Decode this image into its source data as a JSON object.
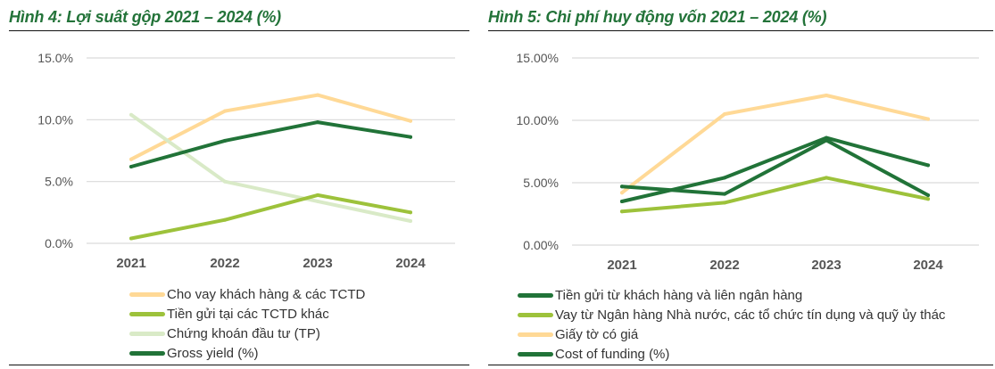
{
  "chart_data": [
    {
      "type": "line",
      "title": "Hình 4: Lợi suất gộp 2021 – 2024 (%)",
      "xlabel": "",
      "ylabel": "",
      "categories": [
        "2021",
        "2022",
        "2023",
        "2024"
      ],
      "ylim": [
        0,
        15
      ],
      "yticks": [
        "0.0%",
        "5.0%",
        "10.0%",
        "15.0%"
      ],
      "ytick_values": [
        0,
        5,
        10,
        15
      ],
      "grid": true,
      "legend_position": "bottom",
      "series": [
        {
          "name": "Cho vay khách hàng & các TCTD",
          "color": "#FFD996",
          "values": [
            6.8,
            10.7,
            12.0,
            9.9
          ]
        },
        {
          "name": "Tiền gửi tại các TCTD khác",
          "color": "#9DC23B",
          "values": [
            0.4,
            1.9,
            3.9,
            2.5
          ]
        },
        {
          "name": "Chứng khoán đầu tư (TP)",
          "color": "#D9EAC7",
          "values": [
            10.4,
            5.0,
            3.4,
            1.8
          ]
        },
        {
          "name": "Gross yield  (%)",
          "color": "#217338",
          "values": [
            6.2,
            8.3,
            9.8,
            8.6
          ]
        }
      ]
    },
    {
      "type": "line",
      "title": "Hình 5: Chi phí huy động vốn 2021 – 2024 (%)",
      "xlabel": "",
      "ylabel": "",
      "categories": [
        "2021",
        "2022",
        "2023",
        "2024"
      ],
      "ylim": [
        0,
        15
      ],
      "yticks": [
        "0.00%",
        "5.00%",
        "10.00%",
        "15.00%"
      ],
      "ytick_values": [
        0,
        5,
        10,
        15
      ],
      "grid": true,
      "legend_position": "bottom",
      "series": [
        {
          "name": "Tiền gửi từ khách hàng và liên ngân hàng",
          "color": "#217338",
          "values": [
            3.5,
            5.4,
            8.6,
            6.4
          ]
        },
        {
          "name": "Vay từ Ngân hàng Nhà nước, các tổ chức tín dụng và quỹ ủy thác",
          "color": "#9DC23B",
          "values": [
            2.7,
            3.4,
            5.4,
            3.7
          ]
        },
        {
          "name": "Giấy tờ có giá",
          "color": "#FFD996",
          "values": [
            4.2,
            10.5,
            12.0,
            10.1
          ]
        },
        {
          "name": "Cost of funding (%)",
          "color": "#217338",
          "values": [
            4.7,
            4.1,
            8.4,
            4.0
          ]
        }
      ]
    }
  ]
}
